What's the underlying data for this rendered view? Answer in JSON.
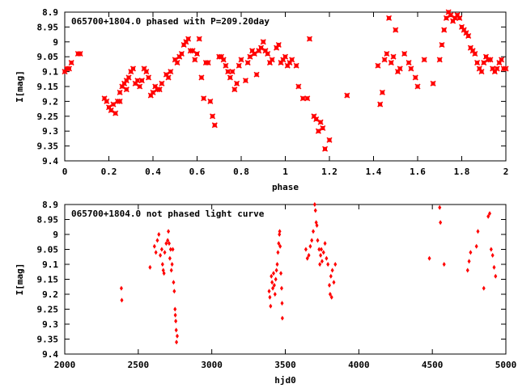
{
  "chart_data": [
    {
      "type": "scatter",
      "title": "065700+1804.0 phased with P=209.20day",
      "xlabel": "phase",
      "ylabel": "I[mag]",
      "xlim": [
        0,
        2
      ],
      "ylim": [
        8.9,
        9.4
      ],
      "y_inverted": true,
      "xticks": [
        0,
        0.2,
        0.4,
        0.6,
        0.8,
        1,
        1.2,
        1.4,
        1.6,
        1.8,
        2
      ],
      "yticks": [
        8.9,
        8.95,
        9.0,
        9.05,
        9.1,
        9.15,
        9.2,
        9.25,
        9.3,
        9.35,
        9.4
      ],
      "xtick_labels": [
        "0",
        "0.2",
        "0.4",
        "0.6",
        "0.8",
        "1",
        "1.2",
        "1.4",
        "1.6",
        "1.8",
        "2"
      ],
      "ytick_labels": [
        "8.9",
        "8.95",
        "9",
        "9.05",
        "9.1",
        "9.15",
        "9.2",
        "9.25",
        "9.3",
        "9.35",
        "9.4"
      ],
      "marker_color": "#ff0000",
      "grid": false,
      "points": [
        [
          0.0,
          9.1
        ],
        [
          0.01,
          9.09
        ],
        [
          0.02,
          9.09
        ],
        [
          0.03,
          9.07
        ],
        [
          0.06,
          9.04
        ],
        [
          0.07,
          9.04
        ],
        [
          0.18,
          9.19
        ],
        [
          0.19,
          9.2
        ],
        [
          0.2,
          9.22
        ],
        [
          0.21,
          9.23
        ],
        [
          0.22,
          9.21
        ],
        [
          0.23,
          9.24
        ],
        [
          0.24,
          9.2
        ],
        [
          0.25,
          9.2
        ],
        [
          0.25,
          9.17
        ],
        [
          0.26,
          9.15
        ],
        [
          0.27,
          9.14
        ],
        [
          0.28,
          9.16
        ],
        [
          0.28,
          9.13
        ],
        [
          0.29,
          9.12
        ],
        [
          0.3,
          9.1
        ],
        [
          0.31,
          9.09
        ],
        [
          0.32,
          9.14
        ],
        [
          0.33,
          9.13
        ],
        [
          0.34,
          9.15
        ],
        [
          0.35,
          9.13
        ],
        [
          0.36,
          9.09
        ],
        [
          0.37,
          9.1
        ],
        [
          0.38,
          9.12
        ],
        [
          0.39,
          9.18
        ],
        [
          0.4,
          9.17
        ],
        [
          0.41,
          9.15
        ],
        [
          0.42,
          9.16
        ],
        [
          0.43,
          9.16
        ],
        [
          0.44,
          9.14
        ],
        [
          0.46,
          9.11
        ],
        [
          0.47,
          9.12
        ],
        [
          0.48,
          9.1
        ],
        [
          0.5,
          9.06
        ],
        [
          0.51,
          9.07
        ],
        [
          0.52,
          9.05
        ],
        [
          0.53,
          9.04
        ],
        [
          0.54,
          9.01
        ],
        [
          0.55,
          9.0
        ],
        [
          0.56,
          8.99
        ],
        [
          0.57,
          9.03
        ],
        [
          0.58,
          9.03
        ],
        [
          0.59,
          9.06
        ],
        [
          0.6,
          9.04
        ],
        [
          0.61,
          8.99
        ],
        [
          0.62,
          9.12
        ],
        [
          0.63,
          9.19
        ],
        [
          0.64,
          9.07
        ],
        [
          0.65,
          9.07
        ],
        [
          0.66,
          9.2
        ],
        [
          0.67,
          9.25
        ],
        [
          0.68,
          9.28
        ],
        [
          0.7,
          9.05
        ],
        [
          0.71,
          9.05
        ],
        [
          0.72,
          9.06
        ],
        [
          0.73,
          9.08
        ],
        [
          0.74,
          9.1
        ],
        [
          0.75,
          9.12
        ],
        [
          0.76,
          9.1
        ],
        [
          0.77,
          9.16
        ],
        [
          0.78,
          9.14
        ],
        [
          0.79,
          9.08
        ],
        [
          0.8,
          9.06
        ],
        [
          0.82,
          9.13
        ],
        [
          0.83,
          9.07
        ],
        [
          0.84,
          9.05
        ],
        [
          0.85,
          9.03
        ],
        [
          0.86,
          9.04
        ],
        [
          0.87,
          9.11
        ],
        [
          0.88,
          9.03
        ],
        [
          0.89,
          9.02
        ],
        [
          0.9,
          9.0
        ],
        [
          0.91,
          9.03
        ],
        [
          0.92,
          9.04
        ],
        [
          0.93,
          9.07
        ],
        [
          0.94,
          9.06
        ],
        [
          0.96,
          9.02
        ],
        [
          0.97,
          9.01
        ],
        [
          0.98,
          9.07
        ],
        [
          0.99,
          9.06
        ],
        [
          1.0,
          9.05
        ],
        [
          1.01,
          9.08
        ],
        [
          1.02,
          9.07
        ],
        [
          1.03,
          9.06
        ],
        [
          1.05,
          9.08
        ],
        [
          1.06,
          9.15
        ],
        [
          1.08,
          9.19
        ],
        [
          1.1,
          9.19
        ],
        [
          1.11,
          8.99
        ],
        [
          1.13,
          9.25
        ],
        [
          1.14,
          9.26
        ],
        [
          1.15,
          9.3
        ],
        [
          1.16,
          9.27
        ],
        [
          1.17,
          9.29
        ],
        [
          1.18,
          9.36
        ],
        [
          1.2,
          9.33
        ],
        [
          1.28,
          9.18
        ],
        [
          1.42,
          9.08
        ],
        [
          1.43,
          9.21
        ],
        [
          1.44,
          9.17
        ],
        [
          1.45,
          9.06
        ],
        [
          1.46,
          9.04
        ],
        [
          1.47,
          8.92
        ],
        [
          1.48,
          9.07
        ],
        [
          1.49,
          9.05
        ],
        [
          1.5,
          8.96
        ],
        [
          1.51,
          9.1
        ],
        [
          1.52,
          9.09
        ],
        [
          1.54,
          9.04
        ],
        [
          1.56,
          9.07
        ],
        [
          1.57,
          9.09
        ],
        [
          1.59,
          9.12
        ],
        [
          1.6,
          9.15
        ],
        [
          1.63,
          9.06
        ],
        [
          1.67,
          9.14
        ],
        [
          1.7,
          9.06
        ],
        [
          1.71,
          9.01
        ],
        [
          1.72,
          8.96
        ],
        [
          1.73,
          8.92
        ],
        [
          1.74,
          8.9
        ],
        [
          1.75,
          8.91
        ],
        [
          1.76,
          8.93
        ],
        [
          1.77,
          8.92
        ],
        [
          1.78,
          8.91
        ],
        [
          1.79,
          8.92
        ],
        [
          1.8,
          8.95
        ],
        [
          1.81,
          8.96
        ],
        [
          1.82,
          8.97
        ],
        [
          1.83,
          8.98
        ],
        [
          1.84,
          9.02
        ],
        [
          1.85,
          9.03
        ],
        [
          1.86,
          9.04
        ],
        [
          1.87,
          9.07
        ],
        [
          1.88,
          9.09
        ],
        [
          1.89,
          9.1
        ],
        [
          1.9,
          9.07
        ],
        [
          1.91,
          9.05
        ],
        [
          1.92,
          9.06
        ],
        [
          1.93,
          9.06
        ],
        [
          1.94,
          9.09
        ],
        [
          1.95,
          9.1
        ],
        [
          1.96,
          9.09
        ],
        [
          1.97,
          9.07
        ],
        [
          1.98,
          9.06
        ],
        [
          1.99,
          9.09
        ],
        [
          2.0,
          9.09
        ]
      ]
    },
    {
      "type": "scatter",
      "title": "065700+1804.0 not phased light curve",
      "xlabel": "hjd0",
      "ylabel": "I[mag]",
      "xlim": [
        2000,
        5000
      ],
      "ylim": [
        8.9,
        9.4
      ],
      "y_inverted": true,
      "xticks": [
        2000,
        2500,
        3000,
        3500,
        4000,
        4500,
        5000
      ],
      "yticks": [
        8.9,
        8.95,
        9.0,
        9.05,
        9.1,
        9.15,
        9.2,
        9.25,
        9.3,
        9.35,
        9.4
      ],
      "xtick_labels": [
        "2000",
        "2500",
        "3000",
        "3500",
        "4000",
        "4500",
        "5000"
      ],
      "ytick_labels": [
        "8.9",
        "8.95",
        "9",
        "9.05",
        "9.1",
        "9.15",
        "9.2",
        "9.25",
        "9.3",
        "9.35",
        "9.4"
      ],
      "marker_color": "#ff0000",
      "grid": false,
      "points": [
        [
          2385,
          9.18
        ],
        [
          2388,
          9.22
        ],
        [
          2580,
          9.11
        ],
        [
          2610,
          9.04
        ],
        [
          2620,
          9.06
        ],
        [
          2630,
          9.02
        ],
        [
          2640,
          9.0
        ],
        [
          2650,
          9.07
        ],
        [
          2660,
          9.05
        ],
        [
          2665,
          9.1
        ],
        [
          2670,
          9.12
        ],
        [
          2675,
          9.13
        ],
        [
          2680,
          9.06
        ],
        [
          2690,
          9.03
        ],
        [
          2700,
          9.02
        ],
        [
          2705,
          8.99
        ],
        [
          2710,
          9.03
        ],
        [
          2715,
          9.08
        ],
        [
          2720,
          9.05
        ],
        [
          2725,
          9.12
        ],
        [
          2730,
          9.1
        ],
        [
          2735,
          9.05
        ],
        [
          2740,
          9.16
        ],
        [
          2745,
          9.19
        ],
        [
          2750,
          9.25
        ],
        [
          2752,
          9.27
        ],
        [
          2755,
          9.29
        ],
        [
          2758,
          9.32
        ],
        [
          2760,
          9.36
        ],
        [
          2765,
          9.34
        ],
        [
          3390,
          9.19
        ],
        [
          3395,
          9.21
        ],
        [
          3400,
          9.24
        ],
        [
          3405,
          9.14
        ],
        [
          3410,
          9.16
        ],
        [
          3415,
          9.18
        ],
        [
          3420,
          9.13
        ],
        [
          3425,
          9.17
        ],
        [
          3430,
          9.2
        ],
        [
          3435,
          9.15
        ],
        [
          3440,
          9.12
        ],
        [
          3445,
          9.1
        ],
        [
          3450,
          9.06
        ],
        [
          3455,
          9.03
        ],
        [
          3460,
          9.0
        ],
        [
          3462,
          8.99
        ],
        [
          3465,
          9.04
        ],
        [
          3470,
          9.13
        ],
        [
          3475,
          9.18
        ],
        [
          3478,
          9.23
        ],
        [
          3480,
          9.28
        ],
        [
          3640,
          9.05
        ],
        [
          3650,
          9.08
        ],
        [
          3660,
          9.07
        ],
        [
          3670,
          9.04
        ],
        [
          3680,
          9.02
        ],
        [
          3690,
          8.99
        ],
        [
          3700,
          8.9
        ],
        [
          3705,
          8.92
        ],
        [
          3710,
          8.96
        ],
        [
          3715,
          8.97
        ],
        [
          3720,
          9.02
        ],
        [
          3730,
          9.05
        ],
        [
          3735,
          9.1
        ],
        [
          3740,
          9.07
        ],
        [
          3745,
          9.05
        ],
        [
          3750,
          9.09
        ],
        [
          3760,
          9.06
        ],
        [
          3770,
          9.03
        ],
        [
          3780,
          9.08
        ],
        [
          3790,
          9.1
        ],
        [
          3800,
          9.17
        ],
        [
          3805,
          9.2
        ],
        [
          3810,
          9.14
        ],
        [
          3815,
          9.21
        ],
        [
          3820,
          9.12
        ],
        [
          3830,
          9.16
        ],
        [
          3840,
          9.1
        ],
        [
          4480,
          9.08
        ],
        [
          4550,
          8.91
        ],
        [
          4555,
          8.96
        ],
        [
          4580,
          9.1
        ],
        [
          4740,
          9.12
        ],
        [
          4750,
          9.09
        ],
        [
          4760,
          9.06
        ],
        [
          4800,
          9.04
        ],
        [
          4810,
          8.99
        ],
        [
          4850,
          9.18
        ],
        [
          4880,
          8.94
        ],
        [
          4890,
          8.93
        ],
        [
          4900,
          9.05
        ],
        [
          4910,
          9.07
        ],
        [
          4920,
          9.11
        ],
        [
          4930,
          9.14
        ]
      ]
    }
  ]
}
